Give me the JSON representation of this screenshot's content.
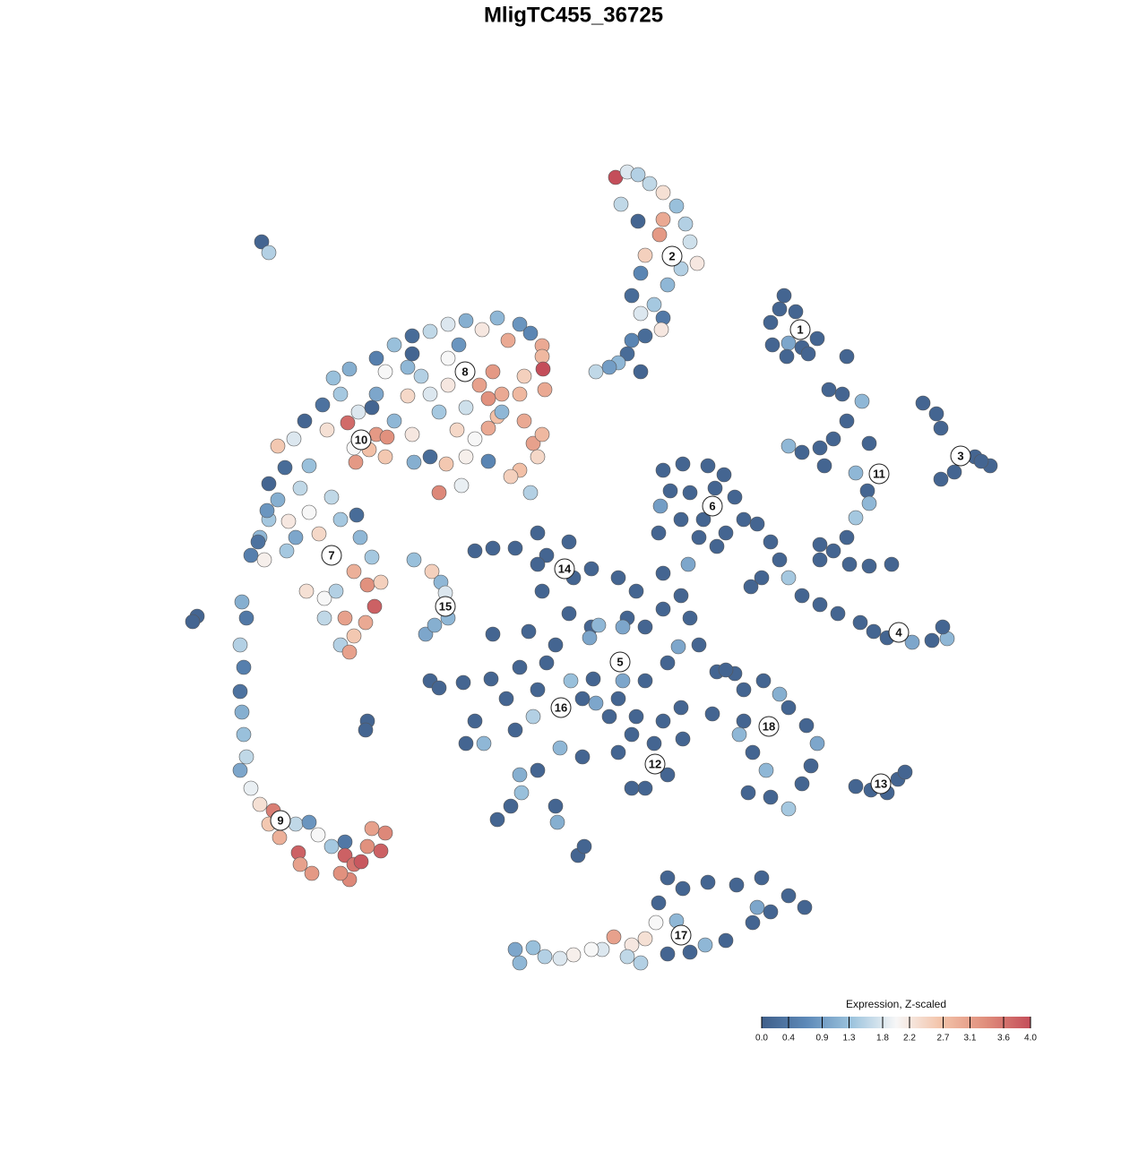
{
  "chart_data": {
    "type": "scatter",
    "title": "MligTC455_36725",
    "xlim": [
      -50,
      50
    ],
    "ylim": [
      -50,
      50
    ],
    "x": [
      2.7,
      4.0,
      5.2,
      6.5,
      8.0,
      9.5,
      10.5,
      8.0,
      7.6,
      11.0,
      11.8,
      10.0,
      6.0,
      8.5,
      5.5,
      7.0,
      8.0,
      5.5,
      7.8,
      6.0,
      4.5,
      4.0,
      3.0,
      5.5,
      0.5,
      2.0,
      5.2,
      3.3,
      4.5,
      21.5,
      20.0,
      22.0,
      23.5,
      25.2,
      20.2,
      21.8,
      24.2,
      21.0,
      22.8,
      28.5,
      37.0,
      38.5,
      39.0,
      42.8,
      44.5,
      39.0,
      40.5,
      43.5,
      26.5,
      28.0,
      30.2,
      28.5,
      27.0,
      25.5,
      22.0,
      23.5,
      26.0,
      29.5,
      31.0,
      30.8,
      31.0,
      29.5,
      28.5,
      27.0,
      25.5,
      28.8,
      31.0,
      33.5,
      25.5,
      20.0,
      21.0,
      22.0,
      23.5,
      25.5,
      27.5,
      30.0,
      31.5,
      33.0,
      35.8,
      38.0,
      39.7,
      39.2,
      17.8,
      19.0,
      8.0,
      10.2,
      13.0,
      14.8,
      16.0,
      17.0,
      15.0,
      12.0,
      10.0,
      7.7,
      8.8,
      11.0,
      13.8,
      7.5,
      10.8,
      14.0,
      18.5,
      12.5,
      -13.0,
      -11.0,
      -8.5,
      -6.0,
      -5.0,
      -2.5,
      -2.0,
      -5.5,
      0.0,
      3.0,
      5.0,
      8.0,
      10.0,
      4.0,
      0.0,
      -2.5,
      -0.2,
      -4.0,
      -7.0,
      -11.0,
      -11.2,
      -8.0,
      -5.0,
      -2.3,
      0.2,
      3.0,
      6.0,
      8.5,
      9.7,
      12.0,
      14.0,
      16.0,
      10.0,
      8.0,
      4.5,
      2.0,
      0.5,
      -6.0,
      -9.5,
      -13.0,
      -14.0,
      -12.0,
      -8.5,
      -6.5,
      -3.5,
      -1.0,
      3.0,
      6.0,
      4.5,
      8.5,
      10.2,
      -6.0,
      -8.0,
      -7.8,
      -10.5,
      -9.0,
      -4.0,
      -3.8,
      -1.5,
      -0.8,
      -18.0,
      -14.3,
      -17.0,
      3.5,
      8.0,
      3.5,
      13.5,
      0.8,
      6.0,
      11.0,
      -6.0,
      -1.0,
      5.0,
      7.0,
      15.0,
      17.0,
      19.2,
      21.0,
      22.0,
      24.0,
      25.2,
      17.0,
      16.5,
      18.0,
      19.5,
      17.5,
      20.0,
      22.0,
      24.5,
      23.5,
      29.5,
      31.2,
      33.0,
      34.2,
      35.0,
      8.5,
      10.2,
      13.0,
      16.2,
      19.0,
      22.0,
      23.8,
      18.0,
      15.0,
      12.7,
      8.5,
      11.0,
      7.2,
      6.0,
      4.5,
      2.5,
      4.0,
      5.5,
      1.2,
      0.0,
      -2.0,
      -3.5,
      -5.2,
      -6.5,
      -8.0,
      -8.5,
      18.5,
      9.5,
      7.5,
      20.0,
      -19.8,
      -17.8,
      -16.8,
      -16.3,
      -16.0,
      -18.5,
      -17.5,
      -36.8,
      -36.0,
      -44.0,
      -44.5,
      -25.0,
      -25.2,
      -38.0,
      -37.0,
      -36.0,
      -39.0,
      -38.5,
      -39.2,
      -38.8,
      -39.2,
      -39.0,
      -38.8,
      -38.5,
      -39.2,
      -38.0,
      -37.0,
      -35.5,
      -36.0,
      -34.8,
      -33.0,
      -31.5,
      -30.5,
      -32.7,
      -31.2,
      -32.5,
      -29.0,
      -27.5,
      -27.5,
      -26.5,
      -27.0,
      -25.7,
      -25.0,
      -23.5,
      -23.0,
      -24.5,
      -28.0,
      -35.0,
      -33.2,
      -34.2,
      -31.5,
      -32.5,
      -35.0,
      -36.2,
      -33.8,
      -31.5,
      -29.0,
      -28.0,
      -30.4,
      -33.0,
      -34.0,
      -36.5,
      -25.8,
      -26.2,
      -26.5,
      -25.0,
      -23.5,
      -24.2,
      -25.2,
      -26.5,
      -28.0,
      -27.0,
      -29.8,
      -28.5,
      -31.8,
      -29.8,
      -24.5,
      -27.5,
      -36.0,
      -37.2,
      -29.5,
      -27.2,
      -26.0,
      -26.5,
      -24.8,
      -24.0,
      -22.8,
      -26.3,
      -23.0,
      -22.0,
      -20.0,
      -19.8,
      -18.0,
      -17.0,
      -14.5,
      -16.2,
      -15.0,
      -13.0,
      -11.5,
      -10.5,
      -7.5,
      -6.5,
      -5.5,
      -6.0,
      -8.0,
      -9.0,
      -6.8,
      -11.5,
      -14.0,
      -28.0,
      -30.0,
      -28.8,
      -27.0,
      -24.0,
      -22.0,
      -20.0,
      -18.0,
      -16.0,
      -14.0,
      -12.2,
      -10.5,
      -9.3,
      -8.0,
      -6.8,
      -5.5,
      -5.5,
      -5.4,
      -5.2,
      -7.5,
      -8.0,
      -11.0,
      -10.0,
      -11.5,
      -12.5,
      -16.0,
      -18.0,
      -19.0,
      -20.5,
      -23.0,
      -24.0,
      -20.5,
      -17.0,
      -14.0,
      -10.0,
      -16.0,
      -14.8,
      -32.0,
      -20.0,
      -24.5
    ],
    "y": [
      44.2,
      44.8,
      44.5,
      43.5,
      42.5,
      41.0,
      39.0,
      39.5,
      37.8,
      37.0,
      34.6,
      34.0,
      35.5,
      32.2,
      33.5,
      30.0,
      28.5,
      29.0,
      27.2,
      26.5,
      26.0,
      24.5,
      23.5,
      22.5,
      22.5,
      23.0,
      39.3,
      41.2,
      31.0,
      31.0,
      28.0,
      25.7,
      25.2,
      26.2,
      25.5,
      24.2,
      24.5,
      29.5,
      29.2,
      24.2,
      19.0,
      17.8,
      16.2,
      13.0,
      12.0,
      10.5,
      11.3,
      12.5,
      20.5,
      20.0,
      19.2,
      17.0,
      15.0,
      14.0,
      14.2,
      13.5,
      12.0,
      11.2,
      14.5,
      9.2,
      7.8,
      6.2,
      4.0,
      2.5,
      1.5,
      1.0,
      0.8,
      1.0,
      3.2,
      3.5,
      1.5,
      -0.5,
      -2.5,
      -3.5,
      -4.5,
      -5.5,
      -6.5,
      -7.2,
      -7.7,
      -7.5,
      -7.3,
      -6.0,
      -1.5,
      -0.5,
      11.5,
      12.2,
      12.0,
      11.0,
      8.5,
      6.0,
      4.5,
      4.0,
      6.0,
      7.5,
      9.2,
      9.0,
      9.5,
      4.5,
      1.0,
      3.0,
      5.5,
      6.0,
      2.5,
      2.8,
      2.8,
      4.5,
      2.0,
      3.5,
      -0.5,
      -2.0,
      0.5,
      -0.5,
      -2.0,
      0.0,
      -2.5,
      -5.0,
      -6.0,
      -4.5,
      -7.2,
      -8.0,
      -6.5,
      -6.8,
      -11.8,
      -10.5,
      -10.0,
      -12.0,
      -11.8,
      -14.0,
      -12.0,
      -10.0,
      -8.2,
      -8.0,
      -11.0,
      -11.2,
      -15.0,
      -16.5,
      -18.0,
      -16.0,
      -14.5,
      -13.0,
      -14.0,
      -16.5,
      -19.0,
      -19.0,
      -17.5,
      -16.0,
      -19.5,
      -20.5,
      -20.0,
      -24.0,
      -24.0,
      -22.5,
      -18.5,
      -22.0,
      -22.5,
      -24.5,
      -27.5,
      -26.0,
      -26.0,
      -27.8,
      -31.5,
      -30.5,
      -12.0,
      -12.2,
      -12.8,
      -12.0,
      -4.0,
      -6.0,
      -15.7,
      -5.8,
      -6.0,
      -5.0,
      1.0,
      -14.0,
      -16.0,
      -19.0,
      -10.8,
      -13.0,
      -12.0,
      -13.5,
      -15.0,
      -17.0,
      -19.0,
      -16.5,
      -18.0,
      -20.0,
      -22.0,
      -24.5,
      -25.0,
      -26.3,
      -21.5,
      -23.5,
      -23.8,
      -24.2,
      -24.5,
      -23.0,
      -22.2,
      -34.0,
      -35.2,
      -34.5,
      -34.8,
      -34.0,
      -36.0,
      -37.3,
      -39.0,
      -41.0,
      -41.5,
      -42.5,
      -42.3,
      -39.0,
      -40.8,
      -41.5,
      -40.6,
      -42.8,
      -43.5,
      -42.0,
      -42.0,
      -42.6,
      -43.0,
      -42.8,
      -41.8,
      -43.5,
      -42.0,
      -37.3,
      -38.8,
      -36.8,
      -37.8,
      1.5,
      0.2,
      -1.0,
      -2.2,
      -5.0,
      -6.8,
      -5.8,
      37.0,
      35.8,
      -4.8,
      -5.4,
      -16.5,
      -17.5,
      2.0,
      4.0,
      6.0,
      -3.2,
      -5.0,
      -8.0,
      -10.5,
      -13.2,
      -15.5,
      -18.0,
      -20.5,
      -22.0,
      -24.0,
      -25.8,
      -26.5,
      -28.0,
      -29.5,
      -28.0,
      -27.8,
      -29.2,
      -31.2,
      -33.5,
      -32.5,
      -30.5,
      -30.0,
      -31.5,
      -32.5,
      -34.2,
      -32.2,
      -30.5,
      -31.0,
      -29.0,
      -28.5,
      -33.5,
      14.2,
      15.0,
      11.8,
      12.0,
      9.5,
      8.2,
      7.0,
      5.8,
      6.8,
      8.5,
      6.0,
      4.4,
      4.0,
      2.5,
      1.5,
      4.0,
      6.5,
      0.2,
      -1.3,
      -1.0,
      -3.7,
      -5.5,
      -7.0,
      -8.0,
      -8.8,
      -2.8,
      -2.0,
      -2.0,
      -5.0,
      1.8,
      -5.0,
      10.0,
      3.5,
      16.0,
      16.8,
      18.0,
      14.0,
      13.8,
      15.5,
      15.2,
      12.4,
      13.0,
      17.0,
      15.5,
      12.4,
      13.0,
      9.0,
      9.8,
      12.2,
      16.0,
      15.0,
      16.2,
      17.5,
      17.0,
      14.5,
      15.5,
      13.0,
      11.5,
      10.8,
      9.0,
      12.5,
      13.0,
      20.0,
      18.8,
      21.8,
      22.8,
      24.0,
      25.5,
      26.5,
      27.0,
      27.8,
      28.2,
      27.2,
      28.5,
      26.0,
      27.8,
      26.8,
      25.4,
      24.2,
      22.8,
      20.5,
      22.0,
      20.0,
      22.5,
      20.0,
      19.5,
      21.0,
      21.0,
      20.0,
      22.0,
      23.0,
      22.5,
      20.0,
      19.8,
      18.0,
      18.5,
      18.0,
      24.0,
      25.5,
      17.0,
      24.5,
      18.5
    ],
    "values": [
      4.0,
      1.8,
      1.5,
      1.6,
      2.3,
      1.3,
      1.5,
      3.0,
      3.2,
      1.7,
      2.2,
      1.5,
      2.5,
      1.2,
      0.6,
      1.4,
      0.4,
      1.8,
      2.2,
      0.2,
      0.6,
      0.2,
      1.2,
      0.1,
      1.6,
      0.9,
      0.1,
      1.6,
      0.2,
      0.1,
      0.1,
      1.0,
      0.1,
      0.1,
      0.1,
      0.1,
      0.1,
      0.1,
      0.1,
      0.1,
      0.1,
      0.1,
      0.1,
      0.1,
      0.1,
      0.1,
      0.1,
      0.1,
      0.1,
      0.1,
      1.2,
      0.1,
      0.1,
      0.1,
      1.2,
      0.1,
      0.1,
      1.2,
      0.1,
      0.1,
      1.2,
      1.4,
      0.1,
      0.1,
      0.1,
      0.1,
      0.1,
      0.1,
      0.1,
      0.1,
      0.1,
      1.4,
      0.1,
      0.1,
      0.1,
      0.1,
      0.1,
      0.1,
      1.0,
      0.1,
      1.2,
      0.1,
      0.1,
      0.1,
      0.1,
      0.1,
      0.1,
      0.1,
      0.1,
      0.1,
      0.1,
      0.1,
      0.1,
      0.9,
      0.1,
      0.1,
      0.1,
      0.1,
      1.0,
      0.1,
      0.1,
      0.1,
      0.1,
      0.1,
      0.1,
      0.1,
      0.1,
      0.1,
      0.1,
      0.1,
      0.1,
      0.1,
      0.1,
      0.1,
      0.1,
      0.1,
      0.1,
      0.1,
      1.0,
      0.1,
      0.1,
      0.1,
      0.1,
      0.1,
      0.1,
      1.3,
      0.1,
      0.1,
      0.1,
      0.1,
      1.0,
      0.1,
      0.1,
      0.1,
      0.1,
      0.1,
      0.1,
      0.1,
      1.0,
      0.1,
      0.1,
      0.1,
      0.1,
      1.2,
      0.1,
      1.5,
      1.2,
      0.1,
      0.1,
      0.1,
      0.1,
      0.1,
      0.1,
      0.1,
      1.1,
      1.3,
      0.1,
      0.1,
      0.1,
      1.1,
      0.1,
      0.1,
      0.1,
      0.1,
      0.1,
      1.0,
      0.1,
      1.0,
      0.1,
      1.2,
      0.1,
      0.1,
      0.1,
      0.1,
      0.1,
      0.1,
      0.1,
      0.1,
      0.1,
      1.1,
      0.1,
      0.1,
      1.0,
      0.1,
      1.2,
      0.1,
      1.2,
      0.1,
      0.1,
      1.4,
      0.1,
      0.1,
      0.1,
      0.1,
      0.1,
      0.1,
      0.1,
      0.1,
      0.1,
      0.1,
      0.1,
      0.1,
      0.1,
      0.1,
      0.1,
      0.1,
      1.2,
      0.1,
      0.1,
      2.0,
      2.3,
      2.2,
      3.1,
      1.6,
      1.5,
      1.8,
      2.0,
      2.1,
      1.8,
      1.5,
      1.3,
      1.2,
      1.0,
      1.0,
      1.2,
      0.1,
      0.1,
      1.3,
      2.5,
      1.2,
      1.8,
      1.2,
      1.0,
      1.1,
      0.1,
      1.5,
      0.1,
      0.1,
      0.1,
      0.1,
      0.5,
      1.2,
      1.4,
      1.1,
      0.4,
      1.5,
      0.5,
      0.3,
      1.1,
      1.3,
      1.6,
      1.0,
      1.9,
      2.3,
      3.5,
      2.6,
      2.9,
      1.6,
      0.8,
      2.0,
      3.8,
      3.2,
      3.1,
      1.4,
      0.4,
      3.8,
      3.6,
      3.4,
      3.9,
      3.3,
      3.8,
      3.4,
      3.1,
      3.3,
      2.6,
      1.8,
      0.2,
      1.3,
      1.6,
      1.1,
      0.8,
      2.2,
      2.0,
      1.6,
      1.4,
      2.4,
      1.0,
      1.4,
      2.1,
      1.2,
      0.2,
      2.9,
      3.3,
      2.5,
      3.8,
      3.0,
      2.6,
      1.5,
      3.1,
      2.0,
      1.5,
      2.3,
      1.6,
      1.4,
      3.1,
      0.1,
      0.3,
      2.3,
      3.7,
      1.8,
      2.0,
      2.7,
      3.2,
      3.3,
      3.2,
      2.6,
      1.2,
      2.2,
      1.1,
      0.2,
      3.4,
      1.9,
      2.6,
      2.4,
      2.0,
      3.0,
      2.7,
      3.0,
      3.1,
      2.8,
      2.4,
      2.7,
      2.5,
      1.5,
      0.6,
      2.1,
      1.4,
      0.3,
      1.3,
      1.1,
      0.5,
      1.3,
      0.2,
      1.6,
      1.8,
      1.1,
      2.2,
      1.2,
      3.0,
      0.8,
      0.6,
      3.0,
      2.8,
      4.0,
      3.0,
      2.5,
      2.8,
      3.2,
      3.0,
      3.3,
      3.1,
      2.2,
      1.8,
      1.5,
      1.2,
      2.0,
      1.0,
      2.4,
      1.4,
      1.7,
      1.2,
      2.0,
      0.8,
      0.1,
      0.1,
      0.1
    ],
    "cluster_labels": {
      "labels": [
        "1",
        "2",
        "3",
        "4",
        "5",
        "6",
        "7",
        "8",
        "9",
        "10",
        "11",
        "12",
        "13",
        "14",
        "15",
        "16",
        "17",
        "18"
      ],
      "x": [
        23.3,
        9.0,
        41.2,
        34.3,
        3.2,
        13.5,
        -29.0,
        -14.1,
        -34.7,
        -25.7,
        32.1,
        7.1,
        32.3,
        -3.0,
        -16.3,
        -3.4,
        10.0,
        19.8
      ],
      "y": [
        27.2,
        35.4,
        13.1,
        -6.6,
        -9.9,
        7.5,
        2.0,
        22.5,
        -27.6,
        14.9,
        11.1,
        -21.3,
        -23.5,
        0.5,
        -3.7,
        -15.0,
        -40.4,
        -17.1
      ]
    },
    "colorbar": {
      "title": "Expression, Z-scaled",
      "lim": [
        0,
        4
      ],
      "colors": [
        "#3f5f8a",
        "#5d89b8",
        "#9cc3dd",
        "#f7f7f7",
        "#f3c3a9",
        "#e08e7c",
        "#c44e5a"
      ],
      "ticks": [
        {
          "value": 0,
          "label": "0.0"
        },
        0.4,
        0.9,
        1.3,
        1.8,
        2.2,
        2.7,
        3.1,
        3.6,
        {
          "value": 4,
          "label": "4.0"
        }
      ]
    }
  }
}
